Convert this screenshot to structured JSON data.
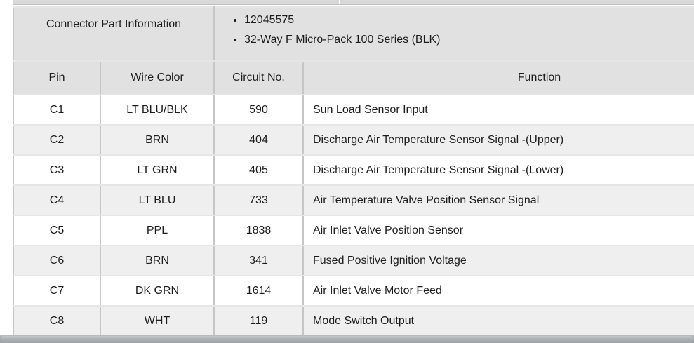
{
  "part_info": {
    "label": "Connector Part Information",
    "bullets": [
      "12045575",
      "32-Way F Micro-Pack 100 Series (BLK)"
    ]
  },
  "table": {
    "headers": [
      "Pin",
      "Wire Color",
      "Circuit No.",
      "Function"
    ],
    "rows": [
      {
        "pin": "C1",
        "wire_color": "LT BLU/BLK",
        "circuit_no": "590",
        "function": "Sun Load Sensor Input"
      },
      {
        "pin": "C2",
        "wire_color": "BRN",
        "circuit_no": "404",
        "function": "Discharge Air Temperature Sensor Signal -(Upper)"
      },
      {
        "pin": "C3",
        "wire_color": "LT GRN",
        "circuit_no": "405",
        "function": "Discharge Air Temperature Sensor Signal -(Lower)"
      },
      {
        "pin": "C4",
        "wire_color": "LT BLU",
        "circuit_no": "733",
        "function": "Air Temperature Valve Position Sensor Signal"
      },
      {
        "pin": "C5",
        "wire_color": "PPL",
        "circuit_no": "1838",
        "function": "Air Inlet Valve Position Sensor"
      },
      {
        "pin": "C6",
        "wire_color": "BRN",
        "circuit_no": "341",
        "function": "Fused Positive Ignition Voltage"
      },
      {
        "pin": "C7",
        "wire_color": "DK GRN",
        "circuit_no": "1614",
        "function": "Air Inlet Valve Motor Feed"
      },
      {
        "pin": "C8",
        "wire_color": "WHT",
        "circuit_no": "119",
        "function": "Mode Switch Output"
      }
    ]
  },
  "colors": {
    "header_bg": "#e1e1e1",
    "stripe_row_bg": "#efefef",
    "plain_row_bg": "#ffffff",
    "vertical_rule": "#c6c6c6",
    "horizontal_rule": "#e6e6e6",
    "top_fragment_bg": "#d8d8d8",
    "scrollbar": "#a5adb1",
    "text": "#1c1c1c"
  }
}
